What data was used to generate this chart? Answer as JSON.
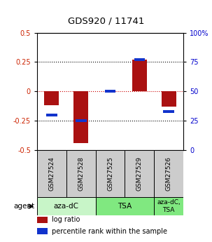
{
  "title": "GDS920 / 11741",
  "samples": [
    "GSM27524",
    "GSM27528",
    "GSM27525",
    "GSM27529",
    "GSM27526"
  ],
  "log_ratios": [
    -0.12,
    -0.44,
    0.0,
    0.27,
    -0.13
  ],
  "percentile_ranks": [
    30,
    25,
    50,
    77,
    33
  ],
  "ylim_left": [
    -0.5,
    0.5
  ],
  "ylim_right": [
    0,
    100
  ],
  "yticks_left": [
    -0.5,
    -0.25,
    0,
    0.25,
    0.5
  ],
  "yticks_right": [
    0,
    25,
    50,
    75,
    100
  ],
  "ytick_labels_left": [
    "-0.5",
    "-0.25",
    "0",
    "0.25",
    "0.5"
  ],
  "ytick_labels_right": [
    "0",
    "25",
    "50",
    "75",
    "100%"
  ],
  "hlines": [
    -0.25,
    0,
    0.25
  ],
  "agent_groups": [
    {
      "label": "aza-dC",
      "span": [
        0,
        2
      ],
      "color": "#c8f5c8"
    },
    {
      "label": "TSA",
      "span": [
        2,
        4
      ],
      "color": "#80e880"
    },
    {
      "label": "aza-dC,\nTSA",
      "span": [
        4,
        5
      ],
      "color": "#80e880"
    }
  ],
  "bar_width": 0.5,
  "log_ratio_color": "#aa1111",
  "percentile_color": "#1133cc",
  "background_color": "#ffffff",
  "sample_box_color": "#cccccc",
  "legend_items": [
    {
      "color": "#aa1111",
      "label": "log ratio"
    },
    {
      "color": "#1133cc",
      "label": "percentile rank within the sample"
    }
  ]
}
